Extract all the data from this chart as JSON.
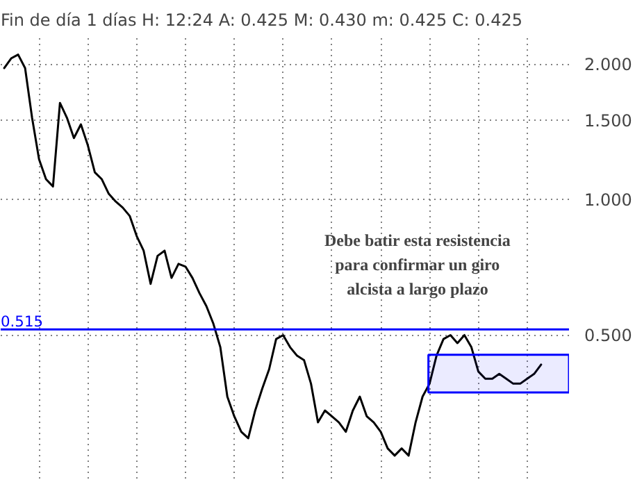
{
  "chart_data": {
    "type": "line",
    "title": "Fin de día 1 días  H: 12:24  A: 0.425  M: 0.430  m: 0.425  C: 0.425",
    "categories": [
      null,
      null,
      null,
      null,
      null,
      null,
      null,
      null,
      null,
      null,
      null,
      null,
      null,
      null,
      null,
      null,
      null,
      null,
      null,
      null,
      null,
      null,
      null,
      null,
      null,
      null,
      null,
      null,
      null,
      null,
      null,
      null,
      null,
      null,
      null,
      null,
      null,
      null,
      null,
      null,
      null,
      null,
      null,
      null,
      null,
      null,
      null,
      null,
      null,
      null,
      null,
      null,
      null,
      null,
      null,
      null,
      null,
      null,
      null,
      null,
      null,
      null,
      null,
      null,
      null,
      null,
      null,
      null,
      null,
      null,
      null,
      null,
      null,
      null,
      null,
      null,
      null,
      null
    ],
    "series": [
      {
        "color": "#000000",
        "values": [
          1.96,
          2.06,
          2.1,
          1.96,
          1.52,
          1.23,
          1.11,
          1.07,
          1.64,
          1.52,
          1.37,
          1.47,
          1.32,
          1.15,
          1.11,
          1.03,
          0.99,
          0.96,
          0.92,
          0.83,
          0.77,
          0.65,
          0.75,
          0.77,
          0.67,
          0.72,
          0.71,
          0.67,
          0.62,
          0.58,
          0.53,
          0.47,
          0.365,
          0.33,
          0.305,
          0.295,
          0.34,
          0.38,
          0.42,
          0.49,
          0.5,
          0.47,
          0.45,
          0.44,
          0.39,
          0.32,
          0.34,
          0.33,
          0.32,
          0.305,
          0.34,
          0.365,
          0.33,
          0.32,
          0.305,
          0.28,
          0.27,
          0.28,
          0.27,
          0.32,
          0.365,
          0.39,
          0.45,
          0.49,
          0.5,
          0.48,
          0.5,
          0.47,
          0.415,
          0.4,
          0.4,
          0.41,
          0.4,
          0.39,
          0.39,
          0.4,
          0.41,
          0.43
        ]
      }
    ],
    "log": true,
    "ylim": [
      0.24,
      2.3
    ],
    "yticks": [
      {
        "value": 0.5,
        "label": "0.500"
      },
      {
        "value": 1,
        "label": "1.000"
      },
      {
        "value": 1.5,
        "label": "1.500"
      },
      {
        "value": 2,
        "label": "2.000"
      }
    ],
    "grid": true,
    "tick_labels": "y",
    "line_style": "solid",
    "marker": "none",
    "ref_lines": [
      {
        "axis": "y",
        "value": 0.515,
        "label": "0.515",
        "color": "#0000ff"
      }
    ],
    "bands": [
      {
        "axis": "y",
        "from": 0.373,
        "to": 0.452,
        "color": "#0000ff"
      }
    ],
    "annotations": [
      {
        "text": "Debe batir esta resistencia\npara confirmar un giro\nalcista a largo plazo",
        "y": 0.515
      }
    ]
  }
}
